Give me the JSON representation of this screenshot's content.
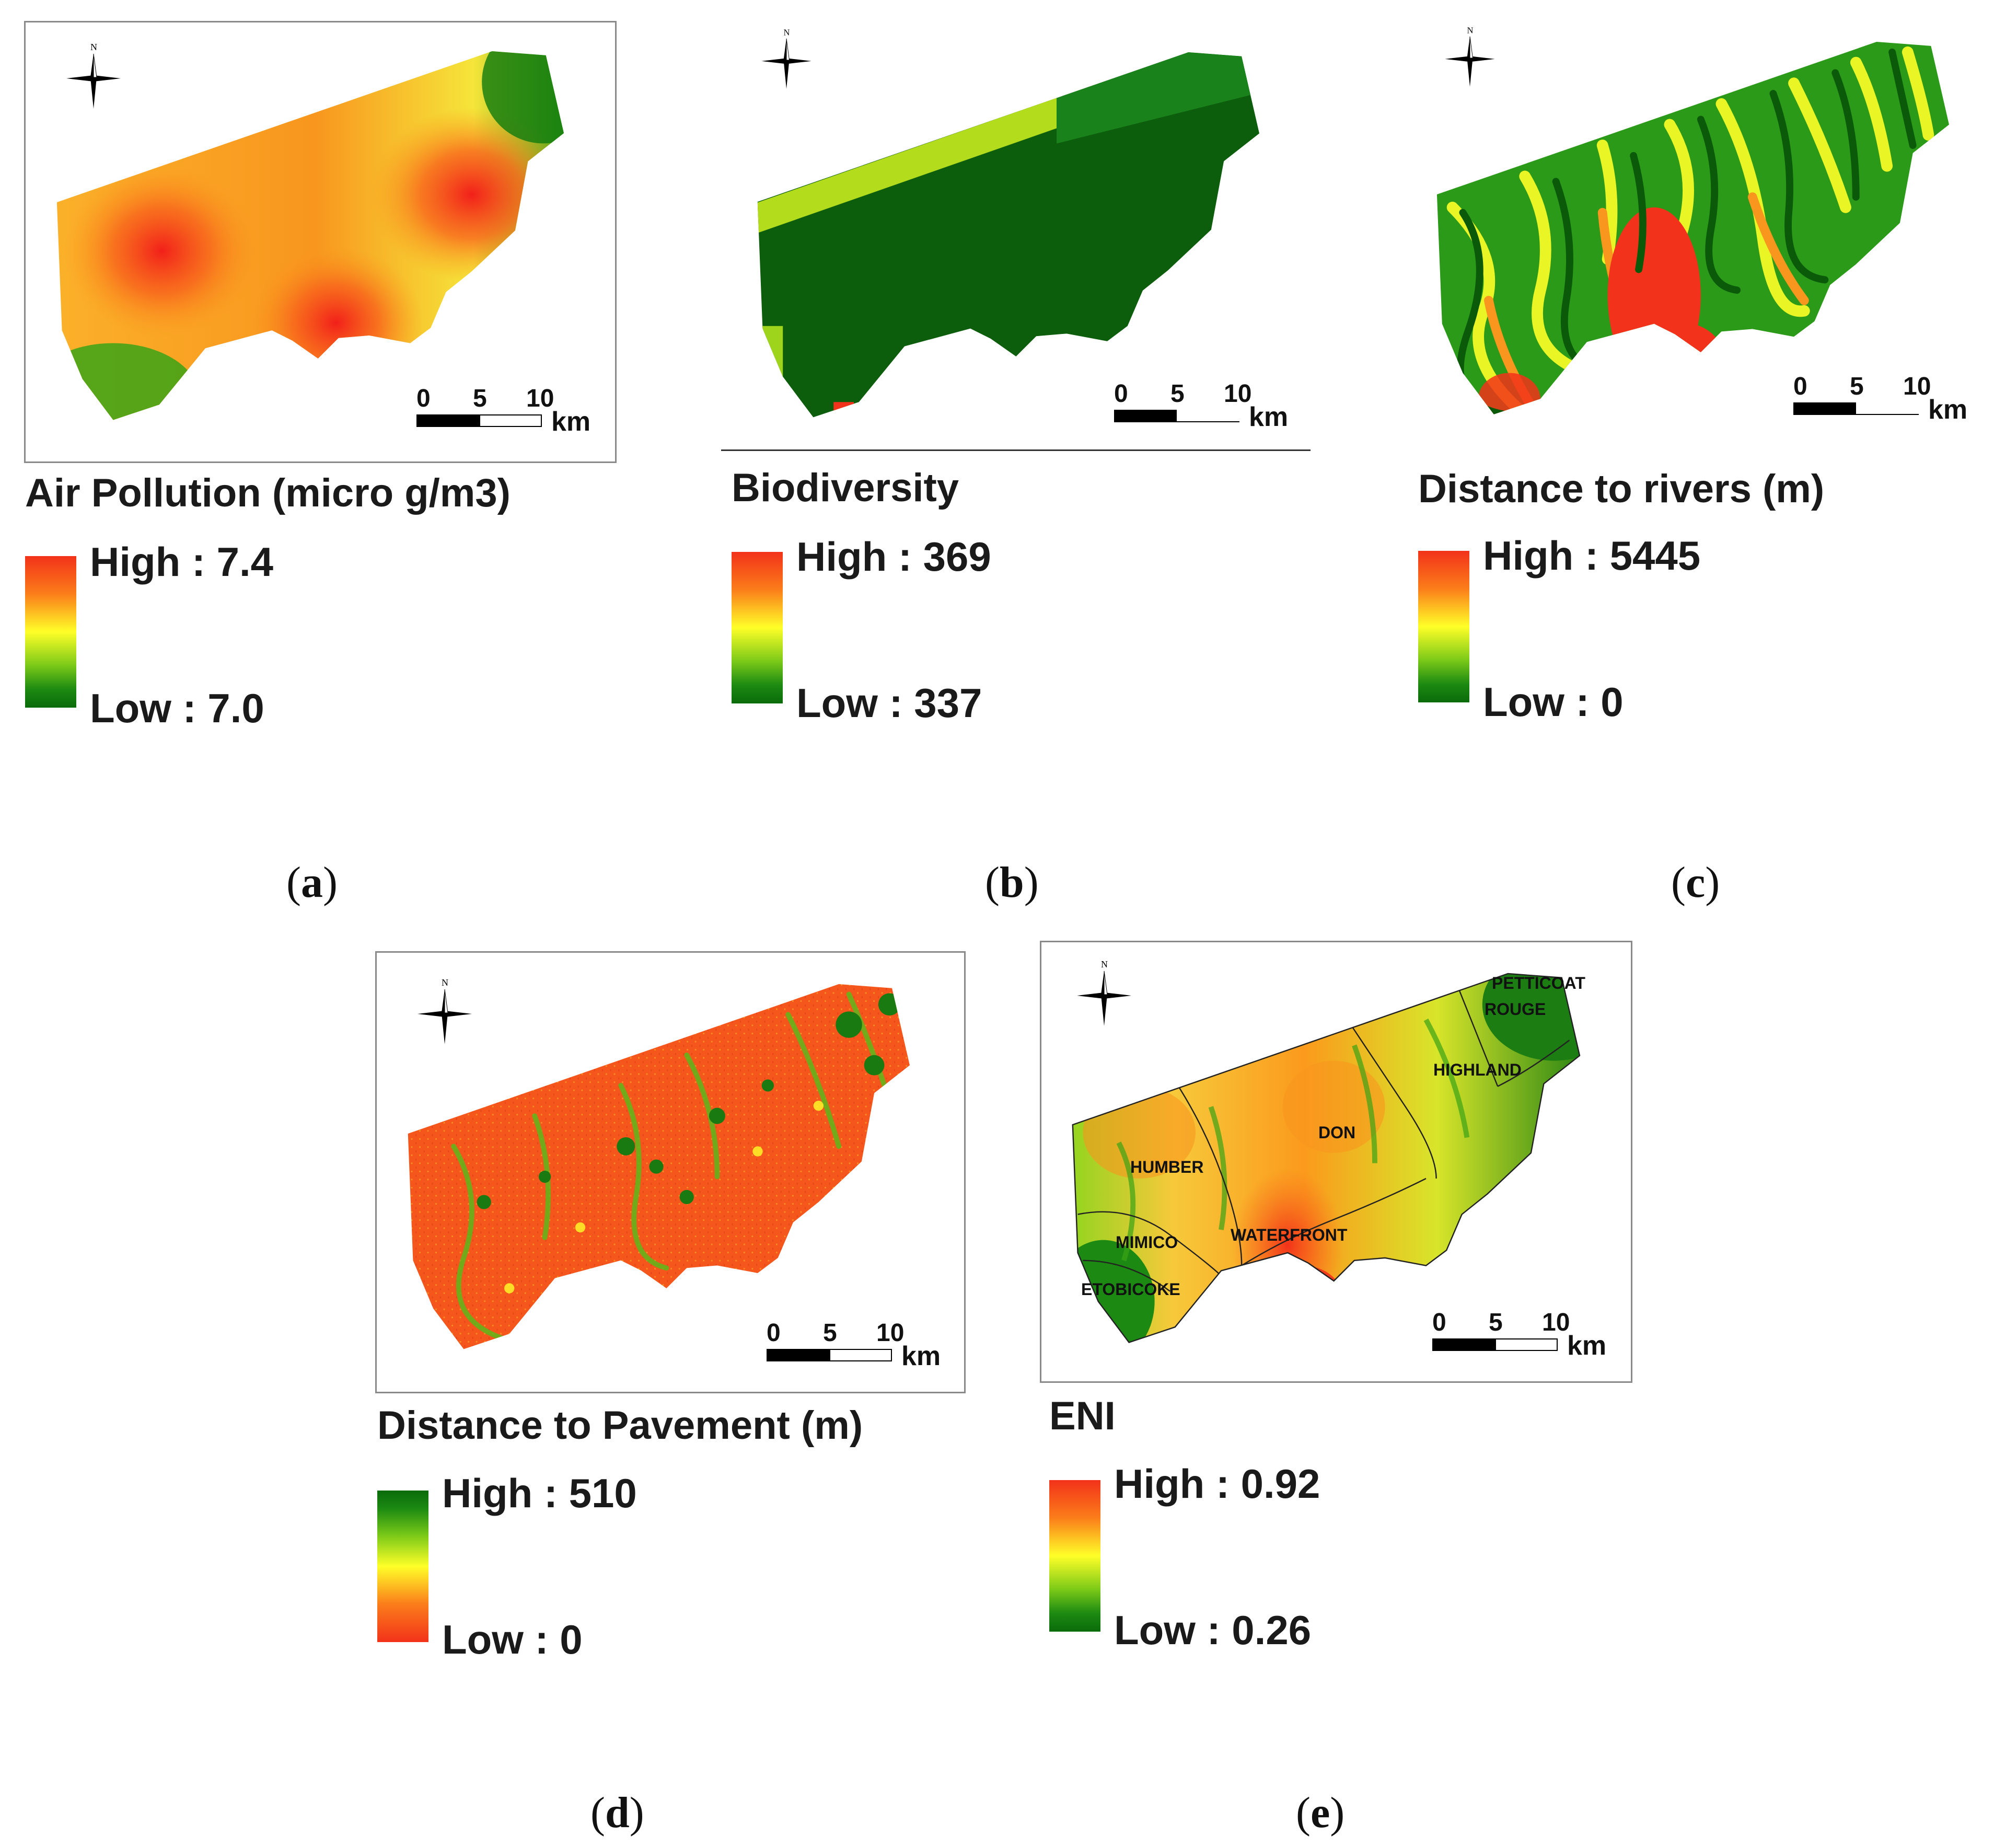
{
  "compass_label": "N",
  "scale_bar": {
    "ticks": [
      "0",
      "5",
      "10"
    ],
    "unit": "km"
  },
  "panels": {
    "a": {
      "caption": "a",
      "title": "Air Pollution (micro g/m3)",
      "legend_high": "High : 7.4",
      "legend_low": "Low : 7.0"
    },
    "b": {
      "caption": "b",
      "title": "Biodiversity",
      "legend_high": "High : 369",
      "legend_low": "Low : 337"
    },
    "c": {
      "caption": "c",
      "title": "Distance to rivers (m)",
      "legend_high": "High : 5445",
      "legend_low": "Low : 0"
    },
    "d": {
      "caption": "d",
      "title": "Distance to Pavement (m)",
      "legend_high": "High : 510",
      "legend_low": "Low : 0"
    },
    "e": {
      "caption": "e",
      "title": "ENI",
      "legend_high": "High : 0.92",
      "legend_low": "Low : 0.26",
      "regions": [
        "PETTICOAT",
        "ROUGE",
        "HIGHLAND",
        "DON",
        "HUMBER",
        "MIMICO",
        "WATERFRONT",
        "ETOBICOKE"
      ]
    }
  },
  "colors": {
    "high_red": "#f2321a",
    "mid_yellow": "#ffff28",
    "low_green": "#0a6b0a"
  }
}
